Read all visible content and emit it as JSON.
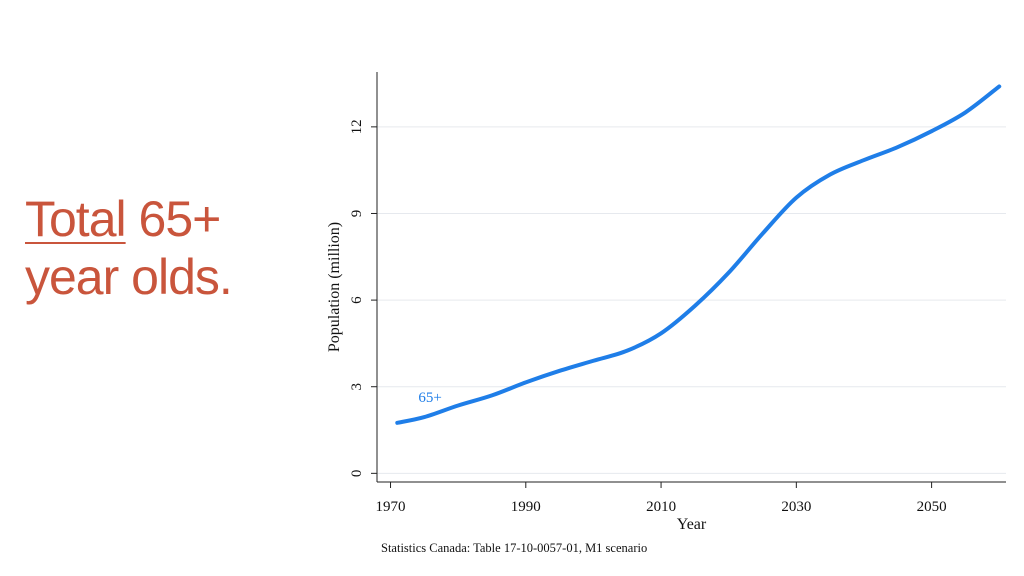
{
  "slide": {
    "title_word1": "Total",
    "title_rest1": " 65+",
    "title_line2": "year olds.",
    "accent_color": "#c9553c"
  },
  "chart_data": {
    "type": "line",
    "xlabel": "Year",
    "ylabel": "Population (million)",
    "source": "Statistics Canada: Table 17-10-0057-01, M1 scenario",
    "xlim": [
      1968,
      2061
    ],
    "ylim": [
      -0.3,
      13.9
    ],
    "x_ticks": [
      1970,
      1990,
      2010,
      2030,
      2050
    ],
    "y_ticks": [
      0,
      3,
      6,
      9,
      12
    ],
    "grid": true,
    "series": [
      {
        "name": "65+",
        "color": "#1f7ee8",
        "x": [
          1971,
          1975,
          1980,
          1985,
          1990,
          1995,
          2000,
          2005,
          2010,
          2015,
          2020,
          2025,
          2030,
          2035,
          2040,
          2045,
          2050,
          2055,
          2060
        ],
        "values": [
          1.75,
          1.95,
          2.35,
          2.7,
          3.15,
          3.55,
          3.9,
          4.25,
          4.85,
          5.8,
          6.95,
          8.3,
          9.55,
          10.35,
          10.85,
          11.3,
          11.85,
          12.5,
          13.4
        ]
      }
    ],
    "annotations": [
      {
        "text": "65+",
        "x": 1975,
        "y": 2.65
      }
    ]
  }
}
